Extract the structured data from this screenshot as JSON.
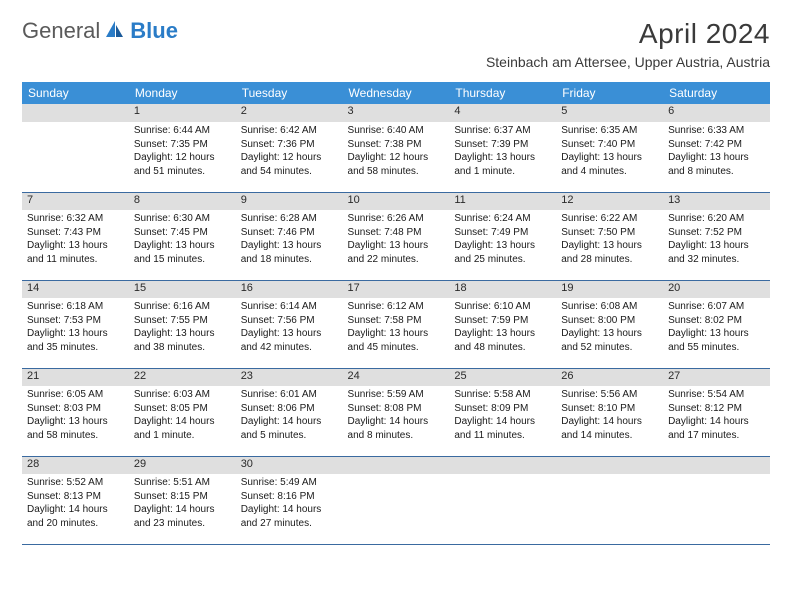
{
  "brand": {
    "part1": "General",
    "part2": "Blue"
  },
  "title": "April 2024",
  "location": "Steinbach am Attersee, Upper Austria, Austria",
  "colors": {
    "header_bg": "#3a8fd6",
    "header_text": "#ffffff",
    "daynum_bg": "#dfdfdf",
    "cell_border": "#3a6aa0",
    "brand_gray": "#5a5a5a",
    "brand_blue": "#2a7cc7",
    "page_bg": "#ffffff"
  },
  "weekdays": [
    "Sunday",
    "Monday",
    "Tuesday",
    "Wednesday",
    "Thursday",
    "Friday",
    "Saturday"
  ],
  "weeks": [
    [
      null,
      {
        "n": "1",
        "sr": "Sunrise: 6:44 AM",
        "ss": "Sunset: 7:35 PM",
        "d1": "Daylight: 12 hours",
        "d2": "and 51 minutes."
      },
      {
        "n": "2",
        "sr": "Sunrise: 6:42 AM",
        "ss": "Sunset: 7:36 PM",
        "d1": "Daylight: 12 hours",
        "d2": "and 54 minutes."
      },
      {
        "n": "3",
        "sr": "Sunrise: 6:40 AM",
        "ss": "Sunset: 7:38 PM",
        "d1": "Daylight: 12 hours",
        "d2": "and 58 minutes."
      },
      {
        "n": "4",
        "sr": "Sunrise: 6:37 AM",
        "ss": "Sunset: 7:39 PM",
        "d1": "Daylight: 13 hours",
        "d2": "and 1 minute."
      },
      {
        "n": "5",
        "sr": "Sunrise: 6:35 AM",
        "ss": "Sunset: 7:40 PM",
        "d1": "Daylight: 13 hours",
        "d2": "and 4 minutes."
      },
      {
        "n": "6",
        "sr": "Sunrise: 6:33 AM",
        "ss": "Sunset: 7:42 PM",
        "d1": "Daylight: 13 hours",
        "d2": "and 8 minutes."
      }
    ],
    [
      {
        "n": "7",
        "sr": "Sunrise: 6:32 AM",
        "ss": "Sunset: 7:43 PM",
        "d1": "Daylight: 13 hours",
        "d2": "and 11 minutes."
      },
      {
        "n": "8",
        "sr": "Sunrise: 6:30 AM",
        "ss": "Sunset: 7:45 PM",
        "d1": "Daylight: 13 hours",
        "d2": "and 15 minutes."
      },
      {
        "n": "9",
        "sr": "Sunrise: 6:28 AM",
        "ss": "Sunset: 7:46 PM",
        "d1": "Daylight: 13 hours",
        "d2": "and 18 minutes."
      },
      {
        "n": "10",
        "sr": "Sunrise: 6:26 AM",
        "ss": "Sunset: 7:48 PM",
        "d1": "Daylight: 13 hours",
        "d2": "and 22 minutes."
      },
      {
        "n": "11",
        "sr": "Sunrise: 6:24 AM",
        "ss": "Sunset: 7:49 PM",
        "d1": "Daylight: 13 hours",
        "d2": "and 25 minutes."
      },
      {
        "n": "12",
        "sr": "Sunrise: 6:22 AM",
        "ss": "Sunset: 7:50 PM",
        "d1": "Daylight: 13 hours",
        "d2": "and 28 minutes."
      },
      {
        "n": "13",
        "sr": "Sunrise: 6:20 AM",
        "ss": "Sunset: 7:52 PM",
        "d1": "Daylight: 13 hours",
        "d2": "and 32 minutes."
      }
    ],
    [
      {
        "n": "14",
        "sr": "Sunrise: 6:18 AM",
        "ss": "Sunset: 7:53 PM",
        "d1": "Daylight: 13 hours",
        "d2": "and 35 minutes."
      },
      {
        "n": "15",
        "sr": "Sunrise: 6:16 AM",
        "ss": "Sunset: 7:55 PM",
        "d1": "Daylight: 13 hours",
        "d2": "and 38 minutes."
      },
      {
        "n": "16",
        "sr": "Sunrise: 6:14 AM",
        "ss": "Sunset: 7:56 PM",
        "d1": "Daylight: 13 hours",
        "d2": "and 42 minutes."
      },
      {
        "n": "17",
        "sr": "Sunrise: 6:12 AM",
        "ss": "Sunset: 7:58 PM",
        "d1": "Daylight: 13 hours",
        "d2": "and 45 minutes."
      },
      {
        "n": "18",
        "sr": "Sunrise: 6:10 AM",
        "ss": "Sunset: 7:59 PM",
        "d1": "Daylight: 13 hours",
        "d2": "and 48 minutes."
      },
      {
        "n": "19",
        "sr": "Sunrise: 6:08 AM",
        "ss": "Sunset: 8:00 PM",
        "d1": "Daylight: 13 hours",
        "d2": "and 52 minutes."
      },
      {
        "n": "20",
        "sr": "Sunrise: 6:07 AM",
        "ss": "Sunset: 8:02 PM",
        "d1": "Daylight: 13 hours",
        "d2": "and 55 minutes."
      }
    ],
    [
      {
        "n": "21",
        "sr": "Sunrise: 6:05 AM",
        "ss": "Sunset: 8:03 PM",
        "d1": "Daylight: 13 hours",
        "d2": "and 58 minutes."
      },
      {
        "n": "22",
        "sr": "Sunrise: 6:03 AM",
        "ss": "Sunset: 8:05 PM",
        "d1": "Daylight: 14 hours",
        "d2": "and 1 minute."
      },
      {
        "n": "23",
        "sr": "Sunrise: 6:01 AM",
        "ss": "Sunset: 8:06 PM",
        "d1": "Daylight: 14 hours",
        "d2": "and 5 minutes."
      },
      {
        "n": "24",
        "sr": "Sunrise: 5:59 AM",
        "ss": "Sunset: 8:08 PM",
        "d1": "Daylight: 14 hours",
        "d2": "and 8 minutes."
      },
      {
        "n": "25",
        "sr": "Sunrise: 5:58 AM",
        "ss": "Sunset: 8:09 PM",
        "d1": "Daylight: 14 hours",
        "d2": "and 11 minutes."
      },
      {
        "n": "26",
        "sr": "Sunrise: 5:56 AM",
        "ss": "Sunset: 8:10 PM",
        "d1": "Daylight: 14 hours",
        "d2": "and 14 minutes."
      },
      {
        "n": "27",
        "sr": "Sunrise: 5:54 AM",
        "ss": "Sunset: 8:12 PM",
        "d1": "Daylight: 14 hours",
        "d2": "and 17 minutes."
      }
    ],
    [
      {
        "n": "28",
        "sr": "Sunrise: 5:52 AM",
        "ss": "Sunset: 8:13 PM",
        "d1": "Daylight: 14 hours",
        "d2": "and 20 minutes."
      },
      {
        "n": "29",
        "sr": "Sunrise: 5:51 AM",
        "ss": "Sunset: 8:15 PM",
        "d1": "Daylight: 14 hours",
        "d2": "and 23 minutes."
      },
      {
        "n": "30",
        "sr": "Sunrise: 5:49 AM",
        "ss": "Sunset: 8:16 PM",
        "d1": "Daylight: 14 hours",
        "d2": "and 27 minutes."
      },
      null,
      null,
      null,
      null
    ]
  ]
}
